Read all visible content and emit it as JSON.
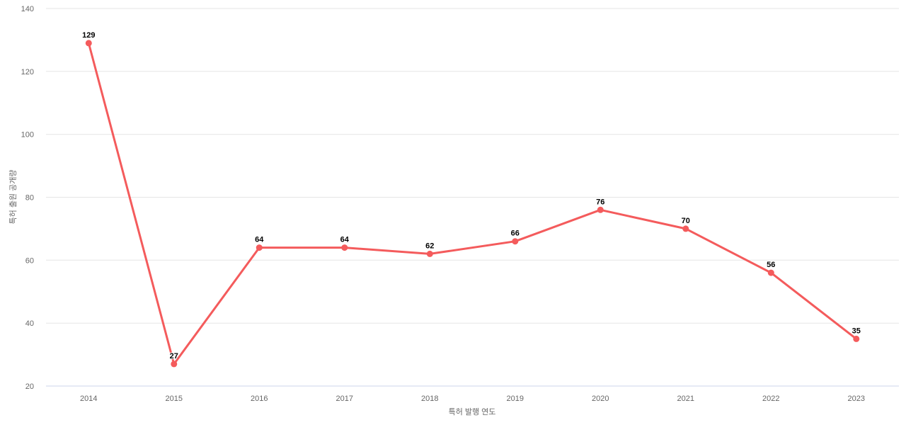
{
  "chart_data": {
    "type": "line",
    "categories": [
      "2014",
      "2015",
      "2016",
      "2017",
      "2018",
      "2019",
      "2020",
      "2021",
      "2022",
      "2023"
    ],
    "values": [
      129,
      27,
      64,
      64,
      62,
      66,
      76,
      70,
      56,
      35
    ],
    "title": "",
    "xlabel": "특허 발행 연도",
    "ylabel": "특허 출원 공개량",
    "ylim": [
      20,
      140
    ],
    "yticks": [
      20,
      40,
      60,
      80,
      100,
      120,
      140
    ],
    "grid": "horizontal",
    "legend": "none",
    "colors": {
      "line": "#f45b5c",
      "marker": "#f45b5c",
      "gridline": "#e6e6e6",
      "axis_line": "#ccd6eb",
      "tick_label": "#666666",
      "axis_title": "#666666",
      "data_label": "#000000",
      "background": "#ffffff"
    }
  }
}
